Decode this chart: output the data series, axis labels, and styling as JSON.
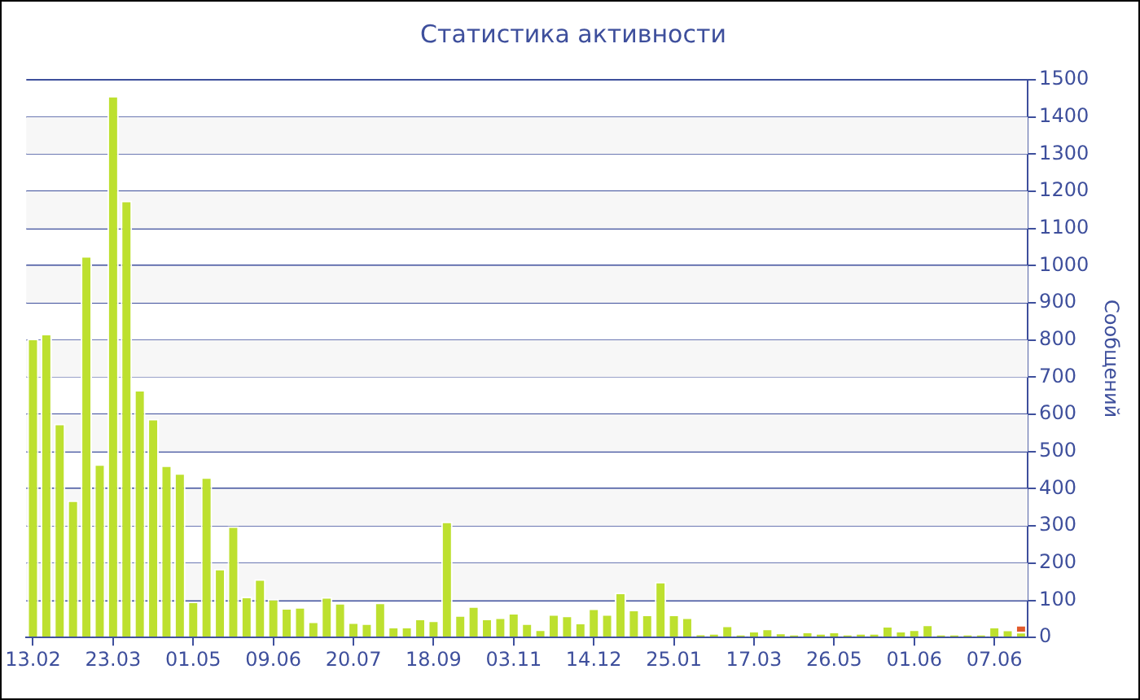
{
  "chart_data": {
    "type": "bar",
    "title": "Статистика активности",
    "ylabel": "Сообщений",
    "stacked": true,
    "grid": "y",
    "legend": false,
    "categories": [
      "13.02",
      null,
      null,
      null,
      null,
      null,
      "23.03",
      null,
      null,
      null,
      null,
      null,
      "01.05",
      null,
      null,
      null,
      null,
      null,
      "09.06",
      null,
      null,
      null,
      null,
      null,
      "20.07",
      null,
      null,
      null,
      null,
      null,
      "18.09",
      null,
      null,
      null,
      null,
      null,
      "03.11",
      null,
      null,
      null,
      null,
      null,
      "14.12",
      null,
      null,
      null,
      null,
      null,
      "25.01",
      null,
      null,
      null,
      null,
      null,
      "17.03",
      null,
      null,
      null,
      null,
      null,
      "26.05",
      null,
      null,
      null,
      null,
      null,
      "01.06",
      null,
      null,
      null,
      null,
      null,
      "07.06",
      null,
      null
    ],
    "series": [
      {
        "color": "#bde02f",
        "values": [
          804,
          817,
          575,
          369,
          1026,
          466,
          1457,
          1175,
          666,
          588,
          463,
          442,
          97,
          431,
          185,
          299,
          110,
          157,
          104,
          79,
          82,
          43,
          109,
          93,
          41,
          38,
          94,
          29,
          29,
          51,
          46,
          312,
          60,
          84,
          51,
          54,
          66,
          38,
          22,
          63,
          59,
          40,
          78,
          63,
          121,
          75,
          62,
          150,
          62,
          54,
          10,
          12,
          32,
          9,
          18,
          24,
          13,
          9,
          16,
          12,
          16,
          9,
          12,
          12,
          31,
          18,
          22,
          35,
          9,
          9,
          9,
          9,
          29,
          21,
          15
        ]
      },
      {
        "color": "#e25b2c",
        "values": [
          null,
          null,
          null,
          null,
          null,
          null,
          null,
          null,
          null,
          null,
          null,
          null,
          null,
          null,
          null,
          null,
          null,
          null,
          null,
          null,
          null,
          null,
          null,
          null,
          null,
          null,
          null,
          null,
          null,
          null,
          null,
          null,
          null,
          null,
          null,
          null,
          null,
          null,
          null,
          null,
          null,
          null,
          null,
          null,
          null,
          null,
          null,
          null,
          null,
          null,
          null,
          null,
          null,
          null,
          null,
          null,
          null,
          null,
          null,
          null,
          null,
          null,
          null,
          null,
          null,
          null,
          null,
          null,
          null,
          null,
          null,
          null,
          null,
          null,
          19
        ]
      }
    ],
    "ylim": [
      0,
      1500
    ],
    "yticks": [
      0,
      100,
      200,
      300,
      400,
      500,
      600,
      700,
      800,
      900,
      1000,
      1100,
      1200,
      1300,
      1400,
      1500
    ]
  }
}
